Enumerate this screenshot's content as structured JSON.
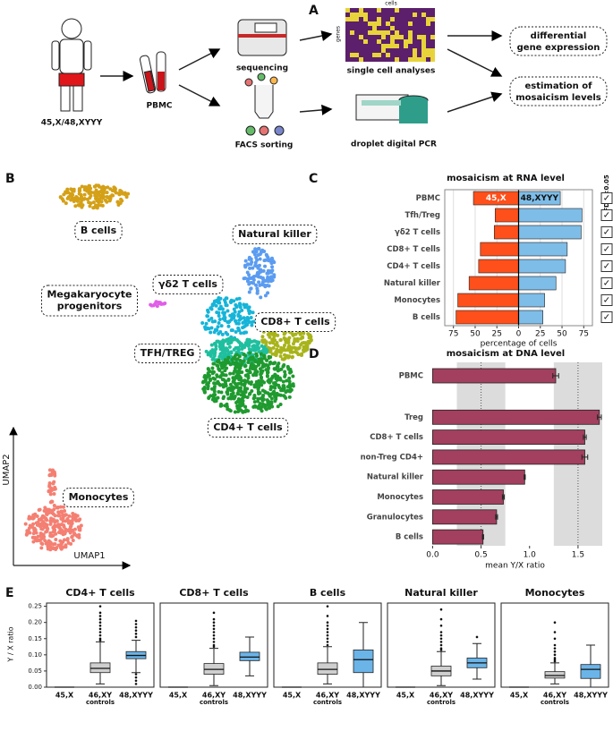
{
  "panel_letters": [
    "A",
    "B",
    "C",
    "D",
    "E"
  ],
  "workflow": {
    "subject": "45,X/48,XYYY",
    "sample": "PBMC",
    "sequencing": "sequencing",
    "facs": "FACS sorting",
    "heatmap_columns": "cells",
    "heatmap_rows": "genes",
    "single_cell": "single cell analyses",
    "ddpcr": "droplet digital PCR",
    "outcome_1": [
      "differential",
      "gene expression"
    ],
    "outcome_2": [
      "estimation of",
      "mosaicism levels"
    ]
  },
  "umap": {
    "xlabel": "UMAP1",
    "ylabel": "UMAP2",
    "clusters": [
      {
        "label": [
          "B cells"
        ],
        "color": "#d4a017"
      },
      {
        "label": [
          "Natural killer"
        ],
        "color": "#5b9cf0"
      },
      {
        "label": [
          "γδ2 T cells"
        ],
        "color": "#16b4d8"
      },
      {
        "label": [
          "Megakaryocyte",
          "progenitors"
        ],
        "color": "#e05ee8"
      },
      {
        "label": [
          "CD8+ T cells"
        ],
        "color": "#a8b41a"
      },
      {
        "label": [
          "TFH/TREG"
        ],
        "color": "#1fbf9f"
      },
      {
        "label": [
          "CD4+ T cells"
        ],
        "color": "#1f9a2f"
      },
      {
        "label": [
          "Monocytes"
        ],
        "color": "#f47f72"
      }
    ]
  },
  "chart_data": [
    {
      "type": "diverging_bar",
      "title": "mosaicism at RNA level",
      "categories": [
        "PBMC",
        "Tfh/Treg",
        "γδ2 T cells",
        "CD8+ T cells",
        "CD4+ T cells",
        "Natural killer",
        "Monocytes",
        "B cells"
      ],
      "series": [
        {
          "name": "45,X",
          "color": "#ff4f1a",
          "values": [
            -52,
            -27,
            -28,
            -44,
            -46,
            -57,
            -70,
            -72
          ]
        },
        {
          "name": "48,XYYY",
          "color": "#7ebde8",
          "values": [
            48,
            73,
            72,
            56,
            54,
            43,
            30,
            28
          ]
        }
      ],
      "xlim": [
        -85,
        85
      ],
      "xticks": [
        {
          "value": -75,
          "label": "75"
        },
        {
          "value": -50,
          "label": "50"
        },
        {
          "value": -25,
          "label": "25"
        },
        0,
        25,
        50,
        75
      ],
      "xlabel": "percentage of cells",
      "grid": true,
      "annotation_title": "FDR <0.05",
      "annotations": [
        "✓",
        "✓",
        "✓",
        "✓",
        "✓",
        "✓",
        "✓",
        "✓"
      ]
    },
    {
      "type": "bar_error",
      "title": "mosaicism at DNA level",
      "categories": [
        "PBMC",
        "Treg",
        "CD8+ T cells",
        "non-Treg CD4+",
        "Natural killer",
        "Monocytes",
        "Granulocytes",
        "B cells"
      ],
      "values": [
        1.27,
        1.72,
        1.57,
        1.57,
        0.95,
        0.73,
        0.66,
        0.52
      ],
      "errors": [
        0.03,
        0.02,
        0.015,
        0.03,
        0.006,
        0.01,
        0.01,
        0.006
      ],
      "color": "#a3405f",
      "xlim": [
        -0.05,
        1.75
      ],
      "xticks": [
        {
          "value": 0,
          "label": "0.0"
        },
        0.5,
        {
          "value": 1,
          "label": "1.0"
        },
        1.5
      ],
      "xlabel": "mean Y/X ratio",
      "shaded_ranges": [
        [
          0.25,
          0.75
        ],
        [
          1.25,
          1.75
        ]
      ],
      "reference_lines": [
        0.5,
        1.5
      ]
    },
    {
      "type": "box",
      "title": "CD4+ T cells",
      "ylabel": "Y / X ratio",
      "categories": [
        "45,X",
        "46,XY",
        "48,XYYY"
      ],
      "category_subtitles": [
        null,
        "controls",
        null
      ],
      "colors": [
        "#888888",
        "#cfcfcf",
        "#6ab4e8"
      ],
      "ylim": [
        0,
        0.26
      ],
      "yticks": [
        {
          "value": 0,
          "label": "0.00"
        },
        0.05,
        {
          "value": 0.1,
          "label": "0.10"
        },
        0.15,
        {
          "value": 0.2,
          "label": "0.20"
        },
        0.25
      ],
      "boxes": [
        {
          "whisker_low": 0,
          "q1": 0,
          "median": 0,
          "q3": 0,
          "whisker_high": 0,
          "outliers": []
        },
        {
          "whisker_low": 0.01,
          "q1": 0.045,
          "median": 0.058,
          "q3": 0.075,
          "whisker_high": 0.14,
          "outliers": [
            0.145,
            0.15,
            0.16,
            0.17,
            0.18,
            0.19,
            0.2,
            0.21,
            0.22,
            0.23,
            0.25
          ]
        },
        {
          "whisker_low": 0.045,
          "q1": 0.088,
          "median": 0.098,
          "q3": 0.11,
          "whisker_high": 0.145,
          "outliers": [
            0.01,
            0.02,
            0.03,
            0.04,
            0.155,
            0.165,
            0.175,
            0.185,
            0.195,
            0.205
          ]
        }
      ]
    },
    {
      "type": "box",
      "title": "CD8+ T cells",
      "categories": [
        "45,X",
        "46,XY",
        "48,XYYY"
      ],
      "category_subtitles": [
        null,
        "controls",
        null
      ],
      "colors": [
        "#888888",
        "#cfcfcf",
        "#6ab4e8"
      ],
      "ylim": [
        0,
        0.26
      ],
      "boxes": [
        {
          "whisker_low": 0,
          "q1": 0,
          "median": 0,
          "q3": 0,
          "whisker_high": 0,
          "outliers": []
        },
        {
          "whisker_low": 0.005,
          "q1": 0.04,
          "median": 0.055,
          "q3": 0.073,
          "whisker_high": 0.12,
          "outliers": [
            0.125,
            0.13,
            0.14,
            0.15,
            0.16,
            0.17,
            0.18,
            0.19,
            0.2,
            0.21,
            0.23
          ]
        },
        {
          "whisker_low": 0.035,
          "q1": 0.082,
          "median": 0.093,
          "q3": 0.108,
          "whisker_high": 0.155,
          "outliers": []
        }
      ]
    },
    {
      "type": "box",
      "title": "B cells",
      "categories": [
        "45,X",
        "46,XY",
        "48,XYYY"
      ],
      "category_subtitles": [
        null,
        "controls",
        null
      ],
      "colors": [
        "#888888",
        "#cfcfcf",
        "#6ab4e8"
      ],
      "ylim": [
        0,
        0.26
      ],
      "boxes": [
        {
          "whisker_low": 0,
          "q1": 0,
          "median": 0,
          "q3": 0,
          "whisker_high": 0,
          "outliers": []
        },
        {
          "whisker_low": 0.01,
          "q1": 0.04,
          "median": 0.055,
          "q3": 0.075,
          "whisker_high": 0.125,
          "outliers": [
            0.13,
            0.14,
            0.15,
            0.16,
            0.17,
            0.18,
            0.19,
            0.2,
            0.22,
            0.25
          ]
        },
        {
          "whisker_low": 0,
          "q1": 0.045,
          "median": 0.085,
          "q3": 0.115,
          "whisker_high": 0.2,
          "outliers": []
        }
      ]
    },
    {
      "type": "box",
      "title": "Natural killer",
      "categories": [
        "45,X",
        "46,XY",
        "48,XYYY"
      ],
      "category_subtitles": [
        null,
        "controls",
        null
      ],
      "colors": [
        "#888888",
        "#cfcfcf",
        "#6ab4e8"
      ],
      "ylim": [
        0,
        0.26
      ],
      "boxes": [
        {
          "whisker_low": 0,
          "q1": 0,
          "median": 0,
          "q3": 0,
          "whisker_high": 0,
          "outliers": []
        },
        {
          "whisker_low": 0.005,
          "q1": 0.035,
          "median": 0.05,
          "q3": 0.065,
          "whisker_high": 0.11,
          "outliers": [
            0.115,
            0.12,
            0.13,
            0.14,
            0.15,
            0.16,
            0.17,
            0.19,
            0.21,
            0.24
          ]
        },
        {
          "whisker_low": 0.025,
          "q1": 0.06,
          "median": 0.075,
          "q3": 0.09,
          "whisker_high": 0.135,
          "outliers": [
            0.155
          ]
        }
      ]
    },
    {
      "type": "box",
      "title": "Monocytes",
      "categories": [
        "45,X",
        "46,XY",
        "48,XYYY"
      ],
      "category_subtitles": [
        null,
        "controls",
        null
      ],
      "colors": [
        "#888888",
        "#cfcfcf",
        "#6ab4e8"
      ],
      "ylim": [
        0,
        0.26
      ],
      "boxes": [
        {
          "whisker_low": 0,
          "q1": 0,
          "median": 0,
          "q3": 0,
          "whisker_high": 0,
          "outliers": []
        },
        {
          "whisker_low": 0.01,
          "q1": 0.028,
          "median": 0.036,
          "q3": 0.048,
          "whisker_high": 0.075,
          "outliers": [
            0.08,
            0.085,
            0.09,
            0.1,
            0.11,
            0.12,
            0.13,
            0.15,
            0.17,
            0.2
          ]
        },
        {
          "whisker_low": 0,
          "q1": 0.027,
          "median": 0.055,
          "q3": 0.07,
          "whisker_high": 0.13,
          "outliers": []
        }
      ]
    }
  ]
}
